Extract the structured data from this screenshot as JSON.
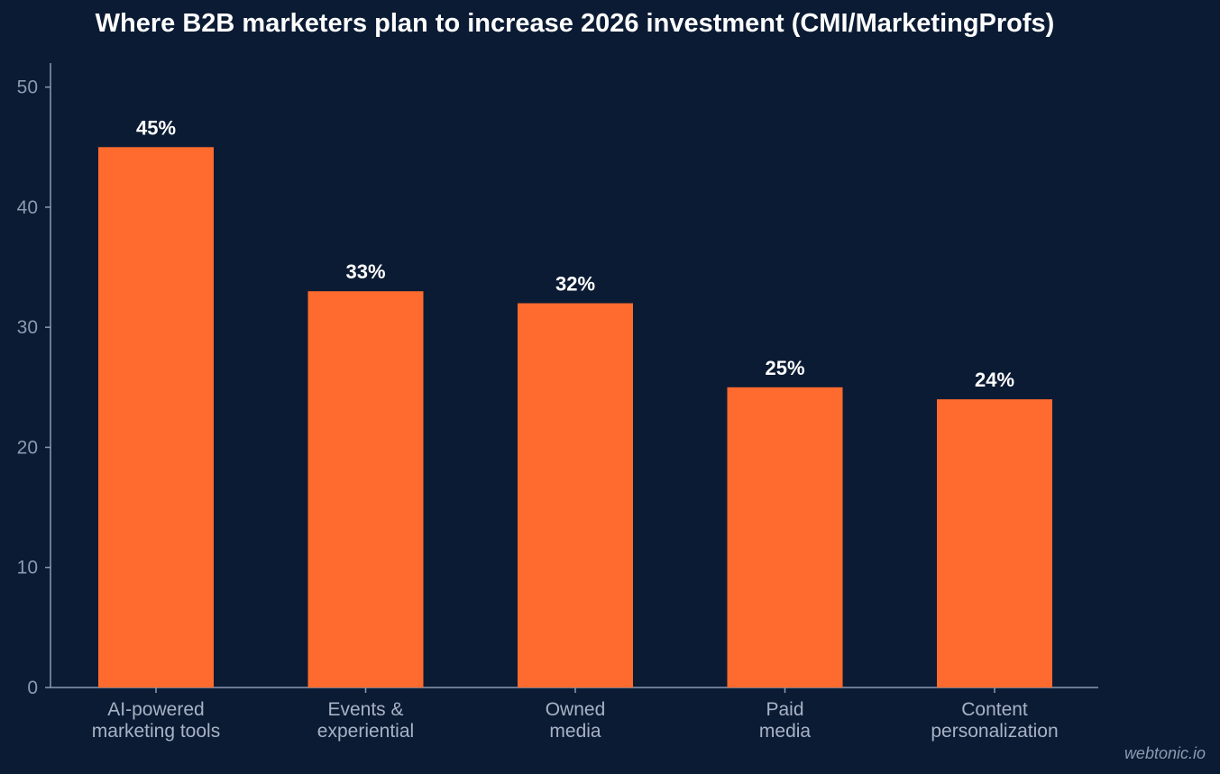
{
  "chart_data": {
    "type": "bar",
    "title": "Where B2B marketers plan to increase 2026 investment (CMI/MarketingProfs)",
    "categories": [
      [
        "AI-powered",
        "marketing tools"
      ],
      [
        "Events &",
        "experiential"
      ],
      [
        "Owned",
        "media"
      ],
      [
        "Paid",
        "media"
      ],
      [
        "Content",
        "personalization"
      ]
    ],
    "values": [
      45,
      33,
      32,
      25,
      24
    ],
    "data_labels": [
      "45%",
      "33%",
      "32%",
      "25%",
      "24%"
    ],
    "xlabel": "",
    "ylabel": "",
    "ylim": [
      0,
      52
    ],
    "yticks": [
      0,
      10,
      20,
      30,
      40,
      50
    ],
    "grid": false,
    "legend": "none"
  },
  "colors": {
    "background": "#0b1b34",
    "bar": "#ff6b2e",
    "axis": "#8d9ab0"
  },
  "watermark": "webtonic.io"
}
